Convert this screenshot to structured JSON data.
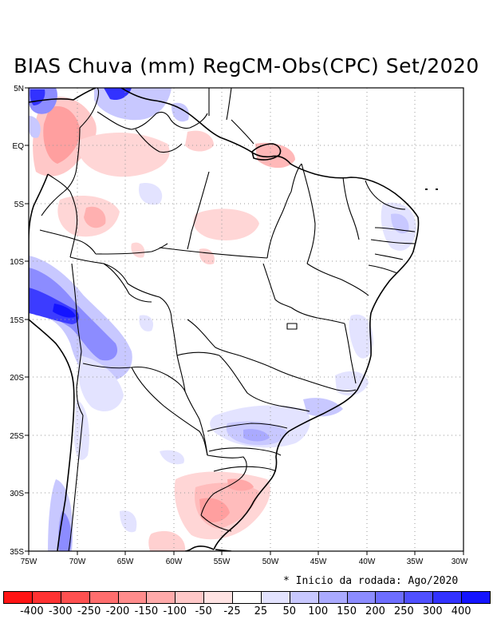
{
  "title": "BIAS Chuva (mm) RegCM-Obs(CPC) Set/2020",
  "note": "* Inicio da rodada: Ago/2020",
  "lat_labels": [
    "5N",
    "EQ",
    "5S",
    "10S",
    "15S",
    "20S",
    "25S",
    "30S",
    "35S"
  ],
  "lon_labels": [
    "75W",
    "70W",
    "65W",
    "60W",
    "55W",
    "50W",
    "45W",
    "40W",
    "35W",
    "30W"
  ],
  "colorbar": {
    "labels": [
      "-400",
      "-300",
      "-250",
      "-200",
      "-150",
      "-100",
      "-50",
      "-25",
      "25",
      "50",
      "100",
      "150",
      "200",
      "250",
      "300",
      "400"
    ],
    "colors": [
      "#ff1414",
      "#ff3232",
      "#ff5050",
      "#ff6e6e",
      "#ff8c8c",
      "#ffaaaa",
      "#ffc8c8",
      "#ffe3e3",
      "#ffffff",
      "#e3e3ff",
      "#c8c8ff",
      "#aaaaff",
      "#8c8cff",
      "#6e6eff",
      "#5050ff",
      "#3232ff",
      "#1414ff"
    ]
  },
  "chart_data": {
    "type": "heatmap",
    "title": "BIAS Chuva (mm) RegCM-Obs(CPC) Set/2020",
    "variable": "Rainfall bias (mm), RegCM minus CPC observations",
    "period": "Set/2020",
    "lon_range": [
      "75W",
      "30W"
    ],
    "lat_range": [
      "35S",
      "5N"
    ],
    "levels": [
      -400,
      -300,
      -250,
      -200,
      -150,
      -100,
      -50,
      -25,
      25,
      50,
      100,
      150,
      200,
      250,
      300,
      400
    ],
    "features": [
      {
        "region": "Andes Peru/Bolivia (~12S-18S, 75W-67W)",
        "bias": "positive, up to 300-400"
      },
      {
        "region": "NW Amazon / Colombia (~2N-3S, 75W-65W)",
        "bias": "negative, -100 to -250"
      },
      {
        "region": "Far north Colombia-Venezuela (~5N, 74W-65W)",
        "bias": "positive, up to 300"
      },
      {
        "region": "Rio Grande do Sul / Uruguay (~28S-33S, 58W-50W)",
        "bias": "negative, -50 to -150"
      },
      {
        "region": "South/Southeast coast Brazil (~22S-27S, 55W-45W)",
        "bias": "positive, 25 to 100"
      },
      {
        "region": "Northeast coast Brazil (~5S-9S, 36W-35W)",
        "bias": "positive, 25 to 50"
      }
    ]
  }
}
